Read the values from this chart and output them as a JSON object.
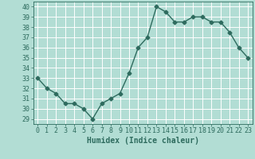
{
  "x": [
    0,
    1,
    2,
    3,
    4,
    5,
    6,
    7,
    8,
    9,
    10,
    11,
    12,
    13,
    14,
    15,
    16,
    17,
    18,
    19,
    20,
    21,
    22,
    23
  ],
  "y": [
    33,
    32,
    31.5,
    30.5,
    30.5,
    30,
    29,
    30.5,
    31,
    31.5,
    33.5,
    36,
    37,
    40,
    39.5,
    38.5,
    38.5,
    39,
    39,
    38.5,
    38.5,
    37.5,
    36,
    35
  ],
  "line_color": "#2e6b5e",
  "marker": "D",
  "markersize": 2.5,
  "linewidth": 1.0,
  "background_color": "#b2ddd4",
  "grid_color": "#ffffff",
  "xlabel": "Humidex (Indice chaleur)",
  "xlim": [
    -0.5,
    23.5
  ],
  "ylim": [
    28.5,
    40.5
  ],
  "yticks": [
    29,
    30,
    31,
    32,
    33,
    34,
    35,
    36,
    37,
    38,
    39,
    40
  ],
  "xticks": [
    0,
    1,
    2,
    3,
    4,
    5,
    6,
    7,
    8,
    9,
    10,
    11,
    12,
    13,
    14,
    15,
    16,
    17,
    18,
    19,
    20,
    21,
    22,
    23
  ],
  "tick_color": "#2e6b5e",
  "label_color": "#2e6b5e",
  "xlabel_fontsize": 7,
  "tick_fontsize": 6
}
